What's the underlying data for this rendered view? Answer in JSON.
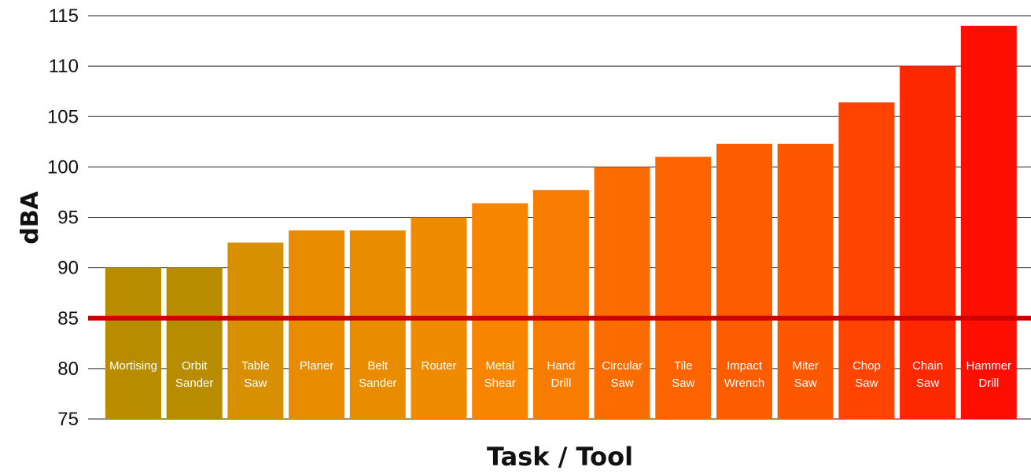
{
  "chart_data": {
    "type": "bar",
    "xlabel": "Task / Tool",
    "ylabel": "dBA",
    "ylim": [
      75,
      115
    ],
    "yticks": [
      75,
      80,
      85,
      90,
      95,
      100,
      105,
      110,
      115
    ],
    "grid": true,
    "reference_line": {
      "value": 85,
      "color": "#cc0000"
    },
    "categories": [
      [
        "Mortising"
      ],
      [
        "Orbit",
        "Sander"
      ],
      [
        "Table",
        "Saw"
      ],
      [
        "Planer"
      ],
      [
        "Belt",
        "Sander"
      ],
      [
        "Router"
      ],
      [
        "Metal",
        "Shear"
      ],
      [
        "Hand",
        "Drill"
      ],
      [
        "Circular",
        "Saw"
      ],
      [
        "Tile",
        "Saw"
      ],
      [
        "Impact",
        "Wrench"
      ],
      [
        "Miter",
        "Saw"
      ],
      [
        "Chop",
        "Saw"
      ],
      [
        "Chain",
        "Saw"
      ],
      [
        "Hammer",
        "Drill"
      ]
    ],
    "values": [
      90,
      90,
      92.5,
      93.7,
      93.7,
      95,
      96.4,
      97.7,
      100,
      101,
      102.3,
      102.3,
      106.4,
      110,
      114
    ],
    "colors": [
      "#b98c00",
      "#b98c00",
      "#d99000",
      "#e98c00",
      "#e98c00",
      "#f08a00",
      "#f88400",
      "#f87c00",
      "#fb6c00",
      "#fd6400",
      "#fd5c00",
      "#fd5800",
      "#fe4400",
      "#fe2800",
      "#fe0e00"
    ]
  }
}
